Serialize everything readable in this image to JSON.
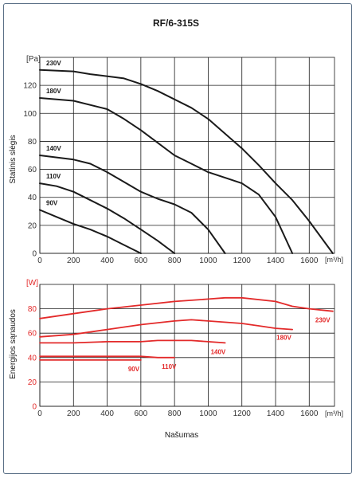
{
  "chart_data": [
    {
      "type": "line",
      "title": "RF/6-315S",
      "xlabel": "",
      "ylabel": "Statinis slėgis",
      "y_unit": "[Pa]",
      "x_unit": "[m³/h]",
      "xlim": [
        0,
        1750
      ],
      "ylim": [
        0,
        140
      ],
      "x_ticks": [
        "0",
        "200",
        "400",
        "600",
        "800",
        "1000",
        "1200",
        "1400",
        "1600"
      ],
      "y_ticks": [
        "0",
        "20",
        "40",
        "60",
        "80",
        "100",
        "120"
      ],
      "grid": true,
      "series": [
        {
          "name": "230V",
          "x": [
            0,
            200,
            300,
            500,
            600,
            700,
            900,
            1000,
            1200,
            1300,
            1400,
            1500,
            1600,
            1740
          ],
          "y": [
            131,
            130,
            128,
            125,
            121,
            116,
            104,
            96,
            75,
            63,
            50,
            38,
            23,
            0
          ]
        },
        {
          "name": "180V",
          "x": [
            0,
            200,
            400,
            500,
            600,
            700,
            800,
            900,
            1000,
            1100,
            1200,
            1300,
            1400,
            1500
          ],
          "y": [
            111,
            109,
            103,
            96,
            88,
            79,
            70,
            64,
            58,
            54,
            50,
            42,
            26,
            0
          ]
        },
        {
          "name": "140V",
          "x": [
            0,
            200,
            300,
            400,
            500,
            600,
            700,
            800,
            900,
            1000,
            1100
          ],
          "y": [
            70,
            67,
            64,
            58,
            51,
            44,
            39,
            35,
            29,
            17,
            0
          ]
        },
        {
          "name": "110V",
          "x": [
            0,
            100,
            200,
            300,
            400,
            500,
            600,
            700,
            800
          ],
          "y": [
            50,
            48,
            44,
            38,
            32,
            25,
            17,
            9,
            0
          ]
        },
        {
          "name": "90V",
          "x": [
            0,
            100,
            200,
            300,
            400,
            500,
            600
          ],
          "y": [
            31,
            26,
            21,
            17,
            12,
            6,
            0
          ]
        }
      ]
    },
    {
      "type": "line",
      "title": "",
      "xlabel": "Našumas",
      "ylabel": "Energijos sąnaudos",
      "y_unit": "[W]",
      "x_unit": "[m³/h]",
      "xlim": [
        0,
        1750
      ],
      "ylim": [
        0,
        100
      ],
      "x_ticks": [
        "0",
        "200",
        "400",
        "600",
        "800",
        "1000",
        "1200",
        "1400",
        "1600"
      ],
      "y_ticks": [
        "0",
        "20",
        "40",
        "60",
        "80"
      ],
      "grid": true,
      "series": [
        {
          "name": "230V",
          "x": [
            0,
            200,
            400,
            600,
            800,
            1000,
            1100,
            1200,
            1400,
            1500,
            1600,
            1740
          ],
          "y": [
            72,
            76,
            80,
            83,
            86,
            88,
            89,
            89,
            86,
            82,
            80,
            78
          ]
        },
        {
          "name": "180V",
          "x": [
            0,
            200,
            300,
            400,
            600,
            800,
            900,
            1000,
            1200,
            1300,
            1400,
            1500
          ],
          "y": [
            57,
            59,
            61,
            63,
            67,
            70,
            71,
            70,
            68,
            66,
            64,
            63
          ]
        },
        {
          "name": "140V",
          "x": [
            0,
            200,
            400,
            600,
            700,
            800,
            900,
            1000,
            1100
          ],
          "y": [
            52,
            52,
            53,
            53,
            54,
            54,
            54,
            53,
            52
          ]
        },
        {
          "name": "110V",
          "x": [
            0,
            200,
            400,
            600,
            700,
            800
          ],
          "y": [
            41,
            41,
            41,
            41,
            40,
            40
          ]
        },
        {
          "name": "90V",
          "x": [
            0,
            200,
            400,
            600
          ],
          "y": [
            38,
            38,
            38,
            38
          ]
        }
      ]
    }
  ]
}
